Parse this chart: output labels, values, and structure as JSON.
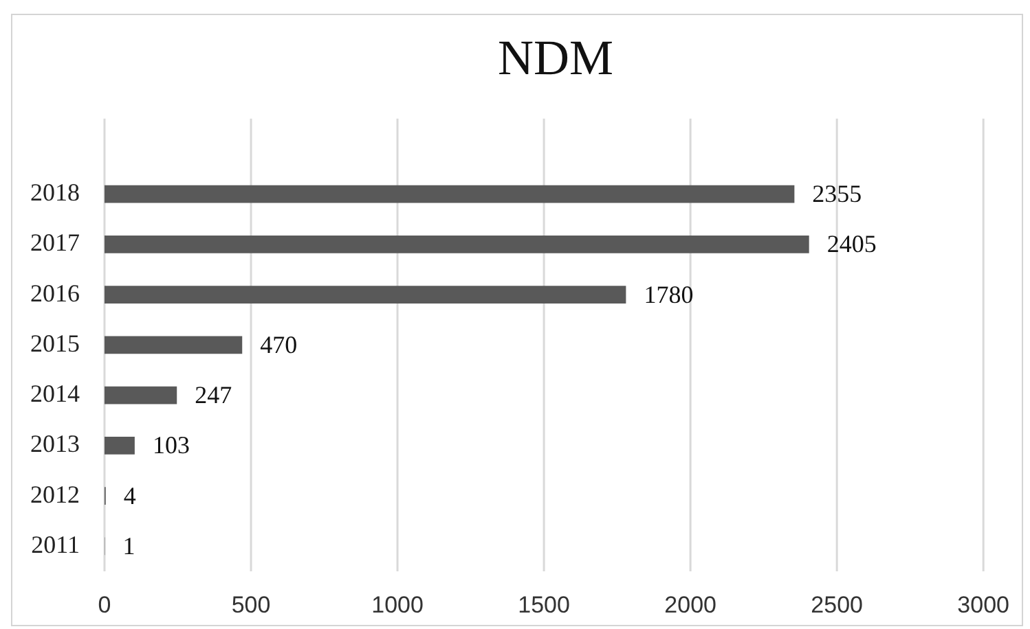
{
  "chart_data": {
    "type": "bar",
    "orientation": "horizontal",
    "title": "NDM",
    "categories": [
      "2018",
      "2017",
      "2016",
      "2015",
      "2014",
      "2013",
      "2012",
      "2011"
    ],
    "values": [
      2355,
      2405,
      1780,
      470,
      247,
      103,
      4,
      1
    ],
    "color": "#595959",
    "xlim": [
      0,
      3000
    ],
    "xticks": [
      0,
      500,
      1000,
      1500,
      2000,
      2500,
      3000
    ],
    "grid": "x",
    "legend": false,
    "data_labels": true
  }
}
